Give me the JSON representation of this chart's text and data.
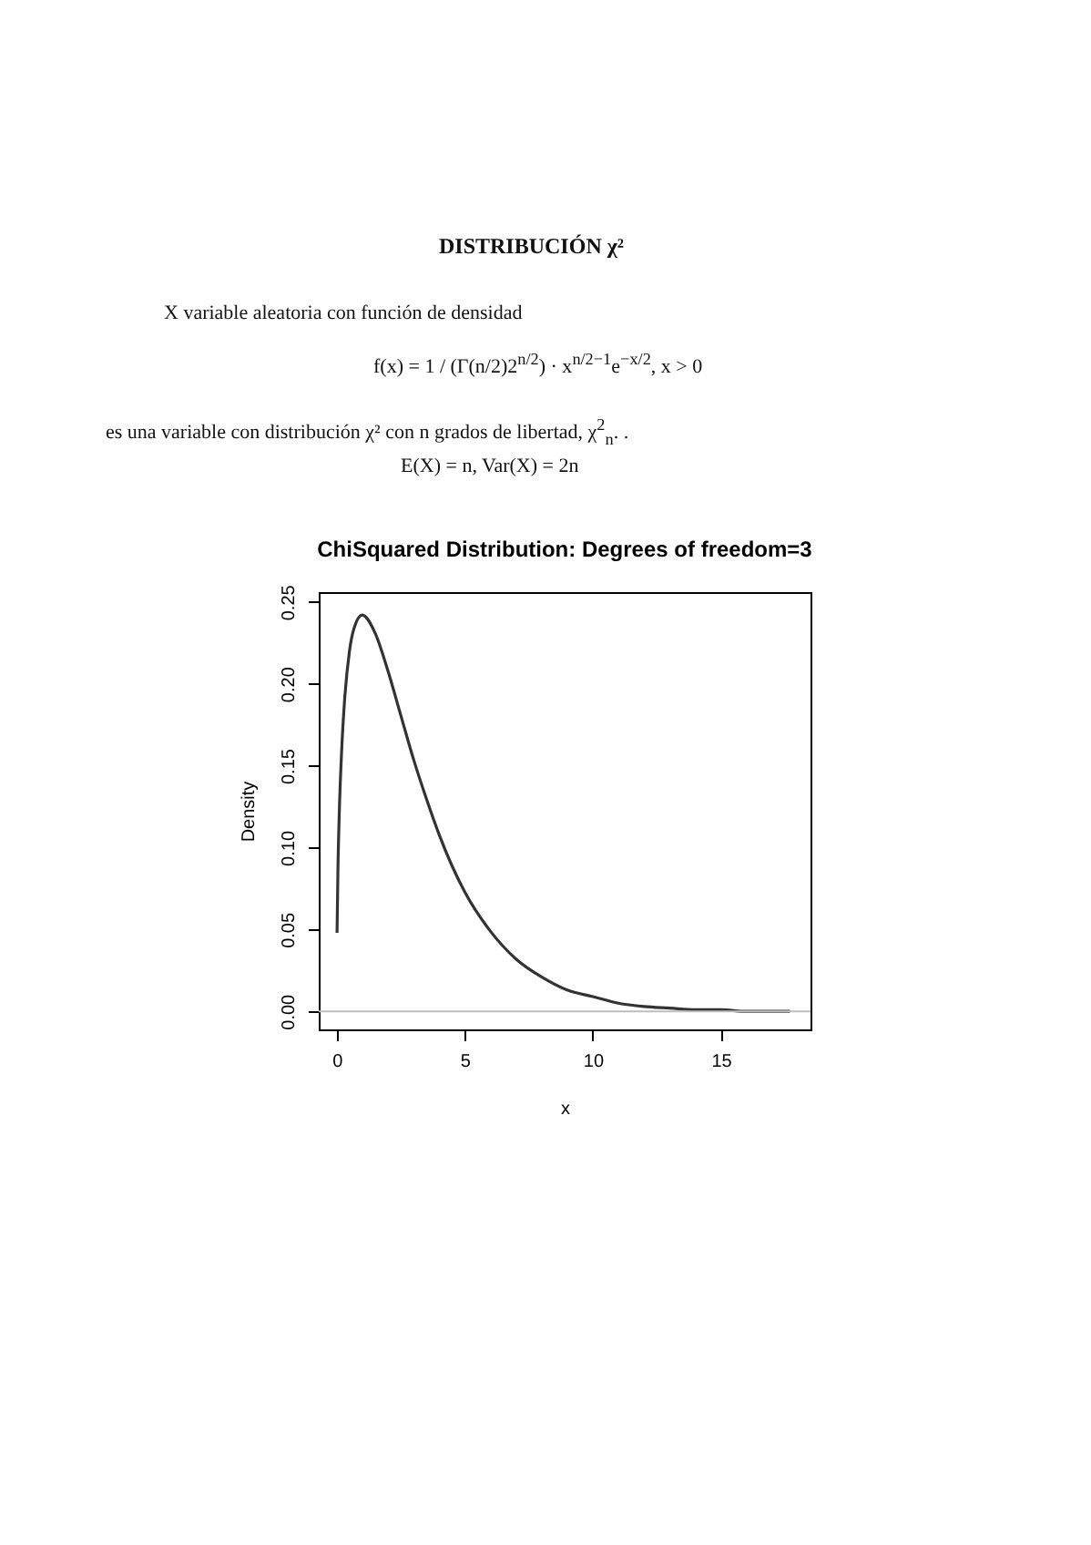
{
  "chart_data": {
    "type": "line",
    "title": "ChiSquared Distribution:  Degrees of freedom=3",
    "xlabel": "x",
    "ylabel": "Density",
    "annotations": [
      "DISTRIBUCIÓN χ²",
      "X variable aleatoria con función de densidad",
      "f(x) = 1 / (Γ(n/2)2$^{n/2}$) · x$^{n/2−1}$e$^{−x/2}$,  x > 0",
      "es una variable con distribución χ² con n grados de libertad, χ$^{2}$$_{n}$. .",
      "E(X) = n,   Var(X) = 2n"
    ],
    "x": [
      0.015,
      0.05,
      0.1,
      0.2,
      0.3,
      0.5,
      0.7,
      1,
      1.5,
      2,
      2.5,
      3,
      3.5,
      4,
      4.5,
      5,
      6,
      7,
      8,
      9,
      10,
      11,
      12,
      13,
      14,
      15,
      16,
      17.7
    ],
    "series": [
      {
        "color": "#333333",
        "values": [
          0.048,
          0.087,
          0.12,
          0.161,
          0.188,
          0.22,
          0.235,
          0.242,
          0.231,
          0.208,
          0.181,
          0.154,
          0.13,
          0.108,
          0.089,
          0.073,
          0.049,
          0.032,
          0.021,
          0.013,
          0.009,
          0.005,
          0.003,
          0.002,
          0.001,
          0.001,
          0.0,
          0.0
        ]
      }
    ],
    "xlim": [
      -0.7,
      18.5
    ],
    "xticks": [
      0,
      5,
      10,
      15
    ],
    "ylim": [
      -0.011,
      0.256
    ],
    "yticks": [
      {
        "value": 0,
        "label": "0.00"
      },
      0.05,
      {
        "value": 0.1,
        "label": "0.10"
      },
      0.15,
      {
        "value": 0.2,
        "label": "0.20"
      },
      0.25
    ],
    "ref_lines": [
      {
        "axis": "y",
        "value": 0,
        "color": "#bebebe"
      }
    ],
    "grid": false
  }
}
